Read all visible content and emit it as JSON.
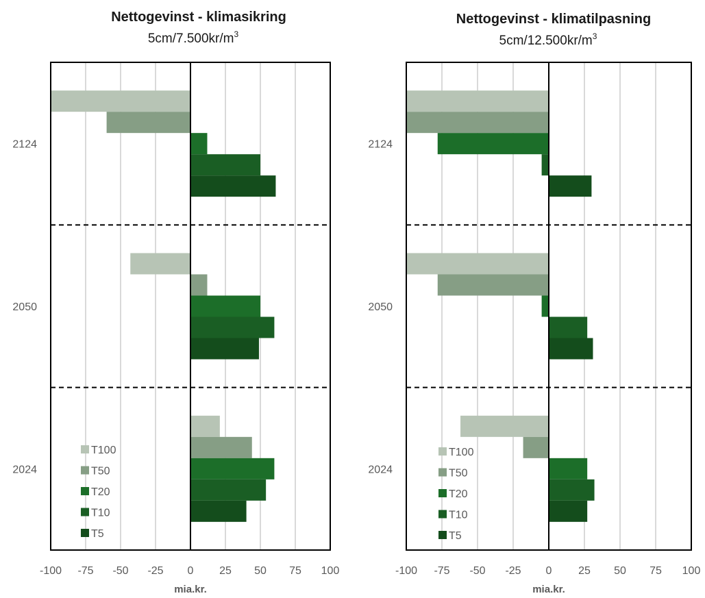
{
  "charts": [
    {
      "title": "Nettogevinst - klimasikring",
      "subtitle": "5cm/7.500kr/m",
      "subtitle_sup": "3"
    },
    {
      "title": "Nettogevinst - klimatilpasning",
      "subtitle": "5cm/12.500kr/m",
      "subtitle_sup": "3"
    }
  ],
  "colors": {
    "T100": "#b7c4b5",
    "T50": "#869e85",
    "T20": "#1c6e29",
    "T10": "#1a5e24",
    "T5": "#144d1c",
    "grid": "#d9d9d9",
    "frame": "#000000"
  },
  "chart_data": [
    {
      "type": "bar",
      "orientation": "horizontal",
      "title": "Nettogevinst - klimasikring",
      "subtitle": "5cm/7.500kr/m3",
      "xlabel": "mia.kr.",
      "xlim": [
        -100,
        100
      ],
      "xticks": [
        "-100",
        "-75",
        "-50",
        "-25",
        "0",
        "25",
        "50",
        "75",
        "100"
      ],
      "categories": [
        "2124",
        "2050",
        "2024"
      ],
      "legend_position": "bottom-left",
      "series": [
        {
          "name": "T100",
          "values": [
            -100,
            -43,
            21
          ]
        },
        {
          "name": "T50",
          "values": [
            -60,
            12,
            44
          ]
        },
        {
          "name": "T20",
          "values": [
            12,
            50,
            60
          ]
        },
        {
          "name": "T10",
          "values": [
            50,
            60,
            54
          ]
        },
        {
          "name": "T5",
          "values": [
            61,
            49,
            40
          ]
        }
      ]
    },
    {
      "type": "bar",
      "orientation": "horizontal",
      "title": "Nettogevinst - klimatilpasning",
      "subtitle": "5cm/12.500kr/m3",
      "xlabel": "mia.kr.",
      "xlim": [
        -100,
        100
      ],
      "xticks": [
        "-100",
        "-75",
        "-50",
        "-25",
        "0",
        "25",
        "50",
        "75",
        "100"
      ],
      "categories": [
        "2124",
        "2050",
        "2024"
      ],
      "legend_position": "bottom-left",
      "series": [
        {
          "name": "T100",
          "values": [
            -100,
            -100,
            -62
          ]
        },
        {
          "name": "T50",
          "values": [
            -100,
            -78,
            -18
          ]
        },
        {
          "name": "T20",
          "values": [
            -78,
            -5,
            27
          ]
        },
        {
          "name": "T10",
          "values": [
            -5,
            27,
            32
          ]
        },
        {
          "name": "T5",
          "values": [
            30,
            31,
            27
          ]
        }
      ]
    }
  ]
}
